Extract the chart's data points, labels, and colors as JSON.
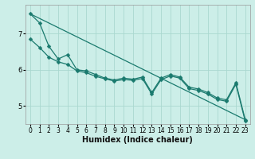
{
  "xlabel": "Humidex (Indice chaleur)",
  "bg_color": "#cceee8",
  "grid_color": "#aad8d0",
  "line_color": "#1a7a6e",
  "xlim": [
    -0.5,
    23.5
  ],
  "ylim": [
    4.5,
    7.8
  ],
  "yticks": [
    5,
    6,
    7
  ],
  "xticks": [
    0,
    1,
    2,
    3,
    4,
    5,
    6,
    7,
    8,
    9,
    10,
    11,
    12,
    13,
    14,
    15,
    16,
    17,
    18,
    19,
    20,
    21,
    22,
    23
  ],
  "line1_x": [
    0,
    1,
    2,
    3,
    4,
    5,
    6,
    7,
    8,
    9,
    10,
    11,
    12,
    13,
    14,
    15,
    16,
    17,
    18,
    19,
    20,
    21,
    22,
    23
  ],
  "line1_y": [
    7.55,
    7.3,
    6.65,
    6.3,
    6.42,
    6.0,
    5.97,
    5.87,
    5.77,
    5.72,
    5.77,
    5.74,
    5.8,
    5.37,
    5.77,
    5.87,
    5.8,
    5.52,
    5.47,
    5.37,
    5.22,
    5.17,
    5.64,
    4.62
  ],
  "line2_x": [
    0,
    1,
    2,
    3,
    4,
    5,
    6,
    7,
    8,
    9,
    10,
    11,
    12,
    13,
    14,
    15,
    16,
    17,
    18,
    19,
    20,
    21,
    22,
    23
  ],
  "line2_y": [
    6.85,
    6.62,
    6.35,
    6.22,
    6.15,
    5.97,
    5.92,
    5.82,
    5.75,
    5.69,
    5.73,
    5.71,
    5.76,
    5.33,
    5.73,
    5.83,
    5.77,
    5.48,
    5.43,
    5.33,
    5.18,
    5.13,
    5.6,
    4.58
  ],
  "line3_x": [
    0,
    23
  ],
  "line3_y": [
    7.55,
    4.62
  ],
  "marker_size": 2.5,
  "linewidth": 0.9,
  "tick_fontsize": 5.5,
  "label_fontsize": 7
}
